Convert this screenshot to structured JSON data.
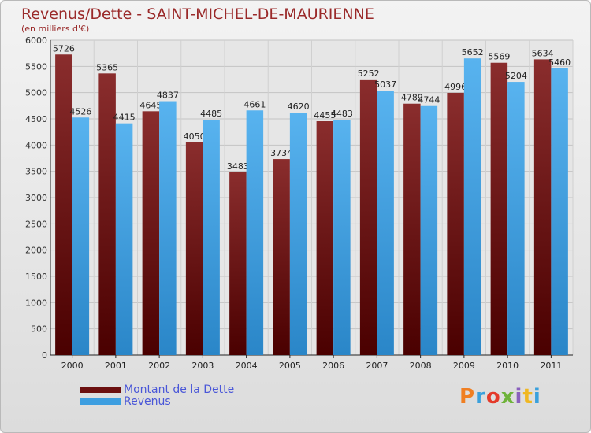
{
  "page": {
    "title": "Revenus/Dette - SAINT-MICHEL-DE-MAURIENNE",
    "subtitle": "(en milliers d'€)",
    "brand": "Proxiti",
    "brand_colors": [
      "#f07f22",
      "#3aa0dc",
      "#e43a2a",
      "#6fb33a",
      "#8a5fbd",
      "#f0b722",
      "#3aa0dc"
    ]
  },
  "legend": {
    "items": [
      {
        "label": "Montant de la Dette",
        "color": "#6b0f0f"
      },
      {
        "label": "Revenus",
        "color": "#3d9ee0"
      }
    ]
  },
  "chart_data": {
    "type": "bar",
    "categories": [
      "2000",
      "2001",
      "2002",
      "2003",
      "2004",
      "2005",
      "2006",
      "2007",
      "2008",
      "2009",
      "2010",
      "2011"
    ],
    "series": [
      {
        "name": "Montant de la Dette",
        "color": "#7e2222",
        "values": [
          5726,
          5365,
          4645,
          4050,
          3483,
          3734,
          4455,
          5252,
          4789,
          4996,
          5569,
          5634
        ]
      },
      {
        "name": "Revenus",
        "color": "#4aa7e6",
        "values": [
          4526,
          4415,
          4837,
          4485,
          4661,
          4620,
          4483,
          5037,
          4744,
          5652,
          5204,
          5460
        ]
      }
    ],
    "yticks": [
      0,
      500,
      1000,
      1500,
      2000,
      2500,
      3000,
      3500,
      4000,
      4500,
      5000,
      5500,
      6000
    ],
    "ylim": [
      0,
      6000
    ],
    "grid": true,
    "legend_position": "bottom-left"
  }
}
